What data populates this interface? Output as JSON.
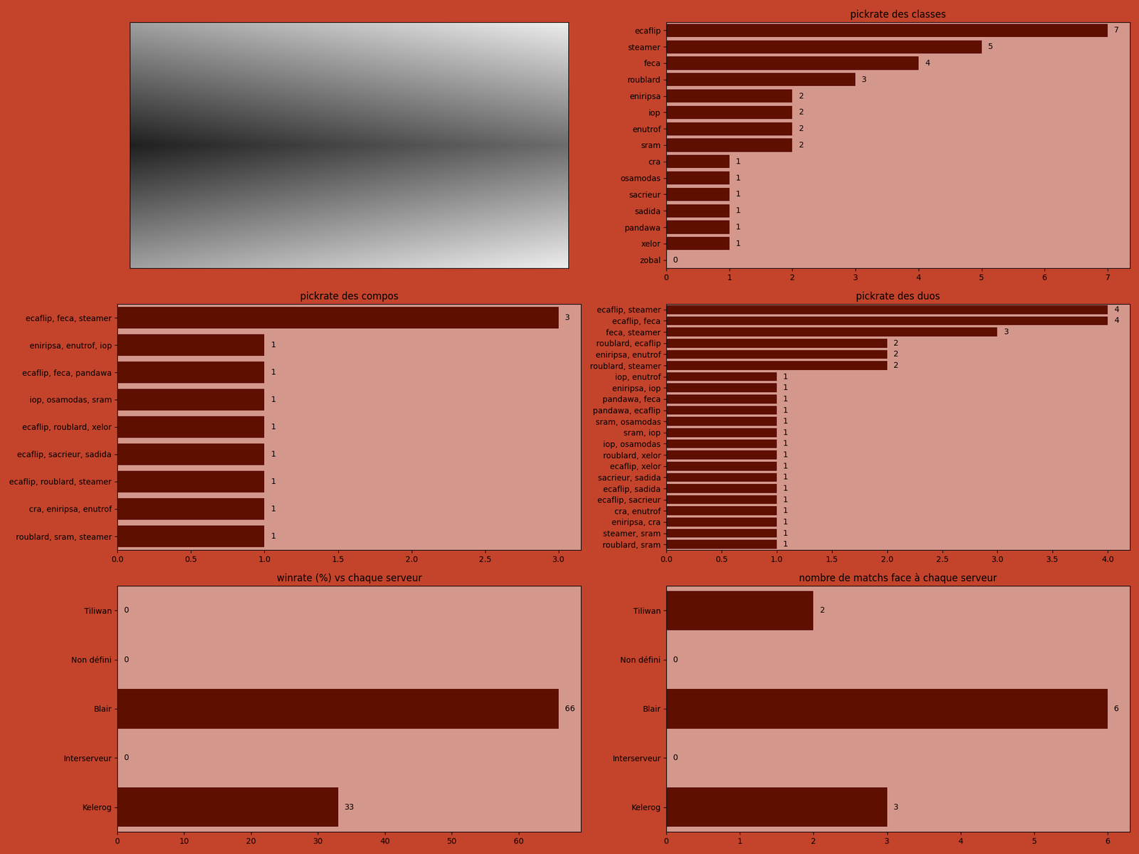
{
  "chart_data": [
    {
      "type": "bar",
      "title": "pickrate des classes",
      "orientation": "horizontal",
      "data_labels": true,
      "color": "#5e0f00",
      "categories": [
        "ecaflip",
        "steamer",
        "feca",
        "roublard",
        "eniripsa",
        "iop",
        "enutrof",
        "sram",
        "cra",
        "osamodas",
        "sacrieur",
        "sadida",
        "pandawa",
        "xelor",
        "zobal"
      ],
      "values": [
        7,
        5,
        4,
        3,
        2,
        2,
        2,
        2,
        1,
        1,
        1,
        1,
        1,
        1,
        0
      ],
      "xlim": [
        0,
        7.35
      ],
      "xticks": [
        0,
        1,
        2,
        3,
        4,
        5,
        6,
        7
      ]
    },
    {
      "type": "bar",
      "title": "pickrate des compos",
      "orientation": "horizontal",
      "data_labels": true,
      "color": "#5e0f00",
      "categories": [
        "ecaflip, feca, steamer",
        "eniripsa, enutrof, iop",
        "ecaflip, feca, pandawa",
        "iop, osamodas, sram",
        "ecaflip, roublard, xelor",
        "ecaflip, sacrieur, sadida",
        "ecaflip, roublard, steamer",
        "cra, eniripsa, enutrof",
        "roublard, sram, steamer"
      ],
      "values": [
        3,
        1,
        1,
        1,
        1,
        1,
        1,
        1,
        1
      ],
      "xlim": [
        0,
        3.15
      ],
      "xticks": [
        {
          "value": 0,
          "label": "0.0"
        },
        {
          "value": 0.5,
          "label": "0.5"
        },
        {
          "value": 1,
          "label": "1.0"
        },
        {
          "value": 1.5,
          "label": "1.5"
        },
        {
          "value": 2,
          "label": "2.0"
        },
        {
          "value": 2.5,
          "label": "2.5"
        },
        {
          "value": 3,
          "label": "3.0"
        }
      ]
    },
    {
      "type": "bar",
      "title": "pickrate des duos",
      "orientation": "horizontal",
      "data_labels": true,
      "color": "#5e0f00",
      "categories": [
        "ecaflip, steamer",
        "ecaflip, feca",
        "feca, steamer",
        "roublard, ecaflip",
        "eniripsa, enutrof",
        "roublard, steamer",
        "iop, enutrof",
        "eniripsa, iop",
        "pandawa, feca",
        "pandawa, ecaflip",
        "sram, osamodas",
        "sram, iop",
        "iop, osamodas",
        "roublard, xelor",
        "ecaflip, xelor",
        "sacrieur, sadida",
        "ecaflip, sadida",
        "ecaflip, sacrieur",
        "cra, enutrof",
        "eniripsa, cra",
        "steamer, sram",
        "roublard, sram"
      ],
      "values": [
        4,
        4,
        3,
        2,
        2,
        2,
        1,
        1,
        1,
        1,
        1,
        1,
        1,
        1,
        1,
        1,
        1,
        1,
        1,
        1,
        1,
        1
      ],
      "xlim": [
        0,
        4.2
      ],
      "xticks": [
        {
          "value": 0,
          "label": "0.0"
        },
        {
          "value": 0.5,
          "label": "0.5"
        },
        {
          "value": 1,
          "label": "1.0"
        },
        {
          "value": 1.5,
          "label": "1.5"
        },
        {
          "value": 2,
          "label": "2.0"
        },
        {
          "value": 2.5,
          "label": "2.5"
        },
        {
          "value": 3,
          "label": "3.0"
        },
        {
          "value": 3.5,
          "label": "3.5"
        },
        {
          "value": 4,
          "label": "4.0"
        }
      ]
    },
    {
      "type": "bar",
      "title": "winrate (%) vs chaque serveur",
      "orientation": "horizontal",
      "data_labels": true,
      "color": "#5e0f00",
      "categories": [
        "Tiliwan",
        "Non défini",
        "Blair",
        "Interserveur",
        "Kelerog"
      ],
      "values": [
        0,
        0,
        66,
        0,
        33
      ],
      "xlim": [
        0,
        69.3
      ],
      "xticks": [
        0,
        10,
        20,
        30,
        40,
        50,
        60
      ]
    },
    {
      "type": "bar",
      "title": "nombre de matchs face à chaque serveur",
      "orientation": "horizontal",
      "data_labels": true,
      "color": "#5e0f00",
      "categories": [
        "Tiliwan",
        "Non défini",
        "Blair",
        "Interserveur",
        "Kelerog"
      ],
      "values": [
        2,
        0,
        6,
        0,
        3
      ],
      "xlim": [
        0,
        6.3
      ],
      "xticks": [
        0,
        1,
        2,
        3,
        4,
        5,
        6
      ]
    }
  ]
}
